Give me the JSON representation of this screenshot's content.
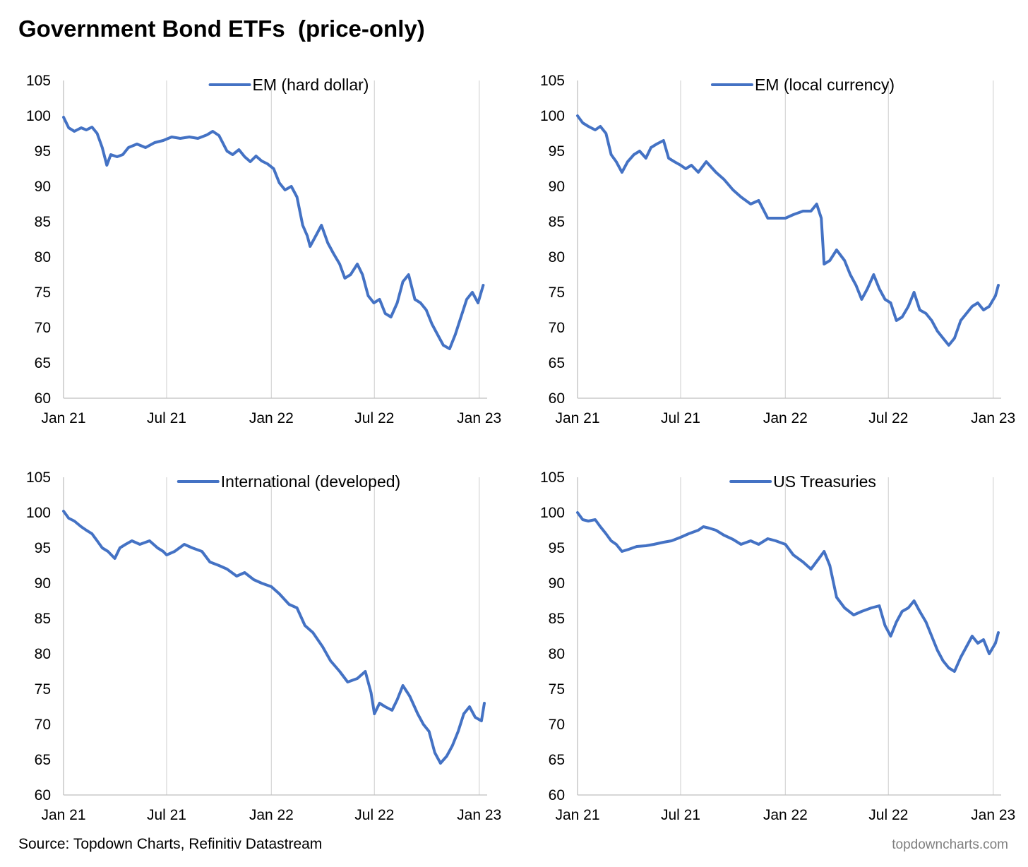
{
  "page": {
    "title": "Government Bond ETFs  (price-only)",
    "source": "Source: Topdown Charts, Refinitiv Datastream",
    "footer": "topdowncharts.com"
  },
  "style": {
    "line_color": "#4472C4",
    "grid_color": "#d9d9d9",
    "axis_color": "#bfbfbf"
  },
  "chart_data": [
    {
      "type": "line",
      "title": "",
      "xlabel": "",
      "ylabel": "",
      "ylim": [
        60,
        105
      ],
      "yticks": [
        60,
        65,
        70,
        75,
        80,
        85,
        90,
        95,
        100,
        105
      ],
      "xlim": [
        "2021-01-01",
        "2023-01-15"
      ],
      "xticks": [
        {
          "date": "2021-01-01",
          "label": "Jan 21"
        },
        {
          "date": "2021-07-01",
          "label": "Jul 21"
        },
        {
          "date": "2022-01-01",
          "label": "Jan 22"
        },
        {
          "date": "2022-07-01",
          "label": "Jul 22"
        },
        {
          "date": "2023-01-01",
          "label": "Jan 23"
        }
      ],
      "grid": "vertical",
      "legend": "top-center",
      "series": [
        {
          "name": "EM (hard dollar)",
          "x": [
            "2021-01-01",
            "2021-01-10",
            "2021-01-20",
            "2021-02-01",
            "2021-02-10",
            "2021-02-20",
            "2021-03-01",
            "2021-03-10",
            "2021-03-18",
            "2021-03-25",
            "2021-04-05",
            "2021-04-15",
            "2021-04-25",
            "2021-05-10",
            "2021-05-25",
            "2021-06-10",
            "2021-06-25",
            "2021-07-10",
            "2021-07-25",
            "2021-08-10",
            "2021-08-25",
            "2021-09-10",
            "2021-09-20",
            "2021-10-01",
            "2021-10-15",
            "2021-10-25",
            "2021-11-05",
            "2021-11-15",
            "2021-11-25",
            "2021-12-05",
            "2021-12-15",
            "2021-12-25",
            "2022-01-05",
            "2022-01-15",
            "2022-01-25",
            "2022-02-05",
            "2022-02-15",
            "2022-02-25",
            "2022-03-05",
            "2022-03-10",
            "2022-03-20",
            "2022-03-30",
            "2022-04-10",
            "2022-04-20",
            "2022-05-01",
            "2022-05-10",
            "2022-05-20",
            "2022-06-01",
            "2022-06-10",
            "2022-06-20",
            "2022-06-30",
            "2022-07-10",
            "2022-07-20",
            "2022-07-30",
            "2022-08-10",
            "2022-08-20",
            "2022-08-30",
            "2022-09-10",
            "2022-09-20",
            "2022-09-30",
            "2022-10-10",
            "2022-10-20",
            "2022-10-30",
            "2022-11-10",
            "2022-11-20",
            "2022-11-30",
            "2022-12-10",
            "2022-12-20",
            "2022-12-30",
            "2023-01-08"
          ],
          "y": [
            99.8,
            98.3,
            97.8,
            98.3,
            98.0,
            98.4,
            97.5,
            95.5,
            93.0,
            94.5,
            94.2,
            94.5,
            95.5,
            96.0,
            95.5,
            96.2,
            96.5,
            97.0,
            96.8,
            97.0,
            96.8,
            97.3,
            97.8,
            97.2,
            95.0,
            94.5,
            95.2,
            94.2,
            93.5,
            94.3,
            93.6,
            93.2,
            92.5,
            90.5,
            89.5,
            90.0,
            88.5,
            84.5,
            83.0,
            81.5,
            83.0,
            84.5,
            82.0,
            80.5,
            79.0,
            77.0,
            77.5,
            79.0,
            77.5,
            74.5,
            73.5,
            74.0,
            72.0,
            71.5,
            73.5,
            76.5,
            77.5,
            74.0,
            73.5,
            72.5,
            70.5,
            69.0,
            67.5,
            67.0,
            69.0,
            71.5,
            74.0,
            75.0,
            73.5,
            76.0
          ]
        }
      ]
    },
    {
      "type": "line",
      "title": "",
      "xlabel": "",
      "ylabel": "",
      "ylim": [
        60,
        105
      ],
      "yticks": [
        60,
        65,
        70,
        75,
        80,
        85,
        90,
        95,
        100,
        105
      ],
      "xlim": [
        "2021-01-01",
        "2023-01-15"
      ],
      "xticks": [
        {
          "date": "2021-01-01",
          "label": "Jan 21"
        },
        {
          "date": "2021-07-01",
          "label": "Jul 21"
        },
        {
          "date": "2022-01-01",
          "label": "Jan 22"
        },
        {
          "date": "2022-07-01",
          "label": "Jul 22"
        },
        {
          "date": "2023-01-01",
          "label": "Jan 23"
        }
      ],
      "grid": "vertical",
      "legend": "top-center",
      "series": [
        {
          "name": "EM (local currency)",
          "x": [
            "2021-01-01",
            "2021-01-10",
            "2021-01-20",
            "2021-02-01",
            "2021-02-10",
            "2021-02-20",
            "2021-03-01",
            "2021-03-10",
            "2021-03-20",
            "2021-03-30",
            "2021-04-10",
            "2021-04-20",
            "2021-05-01",
            "2021-05-10",
            "2021-05-20",
            "2021-06-01",
            "2021-06-10",
            "2021-06-20",
            "2021-07-01",
            "2021-07-10",
            "2021-07-20",
            "2021-08-01",
            "2021-08-15",
            "2021-09-01",
            "2021-09-15",
            "2021-10-01",
            "2021-10-15",
            "2021-11-01",
            "2021-11-15",
            "2021-12-01",
            "2021-12-15",
            "2022-01-01",
            "2022-01-15",
            "2022-02-01",
            "2022-02-15",
            "2022-02-25",
            "2022-03-05",
            "2022-03-10",
            "2022-03-20",
            "2022-04-01",
            "2022-04-15",
            "2022-04-25",
            "2022-05-05",
            "2022-05-15",
            "2022-05-25",
            "2022-06-05",
            "2022-06-15",
            "2022-06-25",
            "2022-07-05",
            "2022-07-15",
            "2022-07-25",
            "2022-08-05",
            "2022-08-15",
            "2022-08-25",
            "2022-09-05",
            "2022-09-15",
            "2022-09-25",
            "2022-10-05",
            "2022-10-15",
            "2022-10-25",
            "2022-11-05",
            "2022-11-15",
            "2022-11-25",
            "2022-12-05",
            "2022-12-15",
            "2022-12-25",
            "2023-01-05",
            "2023-01-10"
          ],
          "y": [
            100.0,
            99.0,
            98.5,
            98.0,
            98.5,
            97.5,
            94.5,
            93.5,
            92.0,
            93.5,
            94.5,
            95.0,
            94.0,
            95.5,
            96.0,
            96.5,
            94.0,
            93.5,
            93.0,
            92.5,
            93.0,
            92.0,
            93.5,
            92.0,
            91.0,
            89.5,
            88.5,
            87.5,
            88.0,
            85.5,
            85.5,
            85.5,
            86.0,
            86.5,
            86.5,
            87.5,
            85.5,
            79.0,
            79.5,
            81.0,
            79.5,
            77.5,
            76.0,
            74.0,
            75.5,
            77.5,
            75.5,
            74.0,
            73.5,
            71.0,
            71.5,
            73.0,
            75.0,
            72.5,
            72.0,
            71.0,
            69.5,
            68.5,
            67.5,
            68.5,
            71.0,
            72.0,
            73.0,
            73.5,
            72.5,
            73.0,
            74.5,
            76.0
          ]
        }
      ]
    },
    {
      "type": "line",
      "title": "",
      "xlabel": "",
      "ylabel": "",
      "ylim": [
        60,
        105
      ],
      "yticks": [
        60,
        65,
        70,
        75,
        80,
        85,
        90,
        95,
        100,
        105
      ],
      "xlim": [
        "2021-01-01",
        "2023-01-15"
      ],
      "xticks": [
        {
          "date": "2021-01-01",
          "label": "Jan 21"
        },
        {
          "date": "2021-07-01",
          "label": "Jul 21"
        },
        {
          "date": "2022-01-01",
          "label": "Jan 22"
        },
        {
          "date": "2022-07-01",
          "label": "Jul 22"
        },
        {
          "date": "2023-01-01",
          "label": "Jan 23"
        }
      ],
      "grid": "vertical",
      "legend": "top-center",
      "series": [
        {
          "name": "International (developed)",
          "x": [
            "2021-01-01",
            "2021-01-10",
            "2021-01-20",
            "2021-02-01",
            "2021-02-10",
            "2021-02-20",
            "2021-03-01",
            "2021-03-10",
            "2021-03-20",
            "2021-04-01",
            "2021-04-10",
            "2021-04-20",
            "2021-05-01",
            "2021-05-15",
            "2021-06-01",
            "2021-06-15",
            "2021-06-25",
            "2021-07-01",
            "2021-07-15",
            "2021-08-01",
            "2021-08-15",
            "2021-09-01",
            "2021-09-15",
            "2021-10-01",
            "2021-10-15",
            "2021-11-01",
            "2021-11-15",
            "2021-12-01",
            "2021-12-15",
            "2022-01-01",
            "2022-01-15",
            "2022-02-01",
            "2022-02-15",
            "2022-03-01",
            "2022-03-15",
            "2022-04-01",
            "2022-04-15",
            "2022-05-01",
            "2022-05-15",
            "2022-06-01",
            "2022-06-15",
            "2022-06-25",
            "2022-07-01",
            "2022-07-10",
            "2022-07-20",
            "2022-08-01",
            "2022-08-10",
            "2022-08-20",
            "2022-09-01",
            "2022-09-15",
            "2022-09-25",
            "2022-10-05",
            "2022-10-15",
            "2022-10-25",
            "2022-11-05",
            "2022-11-15",
            "2022-11-25",
            "2022-12-05",
            "2022-12-15",
            "2022-12-25",
            "2023-01-05",
            "2023-01-10"
          ],
          "y": [
            100.2,
            99.2,
            98.8,
            98.0,
            97.5,
            97.0,
            96.0,
            95.0,
            94.5,
            93.5,
            95.0,
            95.5,
            96.0,
            95.5,
            96.0,
            95.0,
            94.5,
            94.0,
            94.5,
            95.5,
            95.0,
            94.5,
            93.0,
            92.5,
            92.0,
            91.0,
            91.5,
            90.5,
            90.0,
            89.5,
            88.5,
            87.0,
            86.5,
            84.0,
            83.0,
            81.0,
            79.0,
            77.5,
            76.0,
            76.5,
            77.5,
            74.5,
            71.5,
            73.0,
            72.5,
            72.0,
            73.5,
            75.5,
            74.0,
            71.5,
            70.0,
            69.0,
            66.0,
            64.5,
            65.5,
            67.0,
            69.0,
            71.5,
            72.5,
            71.0,
            70.5,
            73.0
          ]
        }
      ]
    },
    {
      "type": "line",
      "title": "",
      "xlabel": "",
      "ylabel": "",
      "ylim": [
        60,
        105
      ],
      "yticks": [
        60,
        65,
        70,
        75,
        80,
        85,
        90,
        95,
        100,
        105
      ],
      "xlim": [
        "2021-01-01",
        "2023-01-15"
      ],
      "xticks": [
        {
          "date": "2021-01-01",
          "label": "Jan 21"
        },
        {
          "date": "2021-07-01",
          "label": "Jul 21"
        },
        {
          "date": "2022-01-01",
          "label": "Jan 22"
        },
        {
          "date": "2022-07-01",
          "label": "Jul 22"
        },
        {
          "date": "2023-01-01",
          "label": "Jan 23"
        }
      ],
      "grid": "vertical",
      "legend": "top-center",
      "series": [
        {
          "name": "US Treasuries",
          "x": [
            "2021-01-01",
            "2021-01-10",
            "2021-01-20",
            "2021-02-01",
            "2021-02-10",
            "2021-02-20",
            "2021-03-01",
            "2021-03-10",
            "2021-03-20",
            "2021-04-01",
            "2021-04-15",
            "2021-05-01",
            "2021-05-15",
            "2021-06-01",
            "2021-06-15",
            "2021-07-01",
            "2021-07-15",
            "2021-08-01",
            "2021-08-10",
            "2021-08-20",
            "2021-09-01",
            "2021-09-15",
            "2021-10-01",
            "2021-10-15",
            "2021-11-01",
            "2021-11-15",
            "2021-12-01",
            "2021-12-15",
            "2022-01-01",
            "2022-01-15",
            "2022-02-01",
            "2022-02-15",
            "2022-03-01",
            "2022-03-10",
            "2022-03-20",
            "2022-04-01",
            "2022-04-15",
            "2022-05-01",
            "2022-05-15",
            "2022-06-01",
            "2022-06-15",
            "2022-06-25",
            "2022-07-05",
            "2022-07-15",
            "2022-07-25",
            "2022-08-05",
            "2022-08-15",
            "2022-08-25",
            "2022-09-05",
            "2022-09-15",
            "2022-09-25",
            "2022-10-05",
            "2022-10-15",
            "2022-10-25",
            "2022-11-05",
            "2022-11-15",
            "2022-11-25",
            "2022-12-05",
            "2022-12-15",
            "2022-12-25",
            "2023-01-05",
            "2023-01-10"
          ],
          "y": [
            100.0,
            99.0,
            98.8,
            99.0,
            98.0,
            97.0,
            96.0,
            95.5,
            94.5,
            94.8,
            95.2,
            95.3,
            95.5,
            95.8,
            96.0,
            96.5,
            97.0,
            97.5,
            98.0,
            97.8,
            97.5,
            96.8,
            96.2,
            95.5,
            96.0,
            95.5,
            96.3,
            96.0,
            95.5,
            94.0,
            93.0,
            92.0,
            93.5,
            94.5,
            92.5,
            88.0,
            86.5,
            85.5,
            86.0,
            86.5,
            86.8,
            84.0,
            82.5,
            84.5,
            86.0,
            86.5,
            87.5,
            86.0,
            84.5,
            82.5,
            80.5,
            79.0,
            78.0,
            77.5,
            79.5,
            81.0,
            82.5,
            81.5,
            82.0,
            80.0,
            81.5,
            83.0
          ]
        }
      ]
    }
  ]
}
